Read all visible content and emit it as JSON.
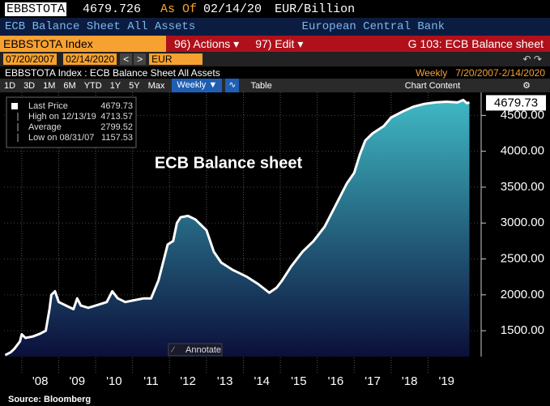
{
  "header": {
    "ticker": "EBBSTOTA",
    "price": 4679.726,
    "as_of_label": "As Of",
    "as_of": "02/14/20",
    "units": "EUR/Billion",
    "description": "ECB Balance Sheet All Assets",
    "source_org": "European Central Bank",
    "security": "EBBSTOTA Index",
    "actions": "96) Actions ▾",
    "edit": "97) Edit ▾",
    "page": "G 103: ECB Balance sheet",
    "start_date": "07/20/2007",
    "end_date": "02/14/2020",
    "currency": "EUR",
    "chart_caption": "EBBSTOTA Index : ECB Balance Sheet All Assets",
    "frequency": "Weekly",
    "range": "7/20/2007-2/14/2020"
  },
  "toolbar": {
    "periods": [
      "1D",
      "3D",
      "1M",
      "6M",
      "YTD",
      "1Y",
      "5Y",
      "Max"
    ],
    "frequency": "Weekly ▼",
    "table": "Table",
    "chart_content": "Chart Content"
  },
  "chart_data": {
    "type": "area",
    "title": "ECB Balance sheet",
    "source": "Source: Bloomberg",
    "annotate": "Annotate",
    "color": "#3fb8c4",
    "x": [
      2007.55,
      2007.7,
      2007.8,
      2007.95,
      2008.0,
      2008.1,
      2008.3,
      2008.5,
      2008.65,
      2008.75,
      2008.8,
      2008.9,
      2009.0,
      2009.2,
      2009.4,
      2009.5,
      2009.6,
      2009.8,
      2010.0,
      2010.3,
      2010.45,
      2010.6,
      2010.8,
      2011.0,
      2011.3,
      2011.5,
      2011.7,
      2011.8,
      2011.95,
      2012.1,
      2012.2,
      2012.3,
      2012.5,
      2012.7,
      2013.0,
      2013.2,
      2013.4,
      2013.7,
      2013.9,
      2014.1,
      2014.4,
      2014.7,
      2014.9,
      2015.05,
      2015.3,
      2015.6,
      2015.9,
      2016.2,
      2016.5,
      2016.8,
      2017.0,
      2017.15,
      2017.3,
      2017.5,
      2017.8,
      2018.0,
      2018.3,
      2018.6,
      2018.9,
      2019.2,
      2019.5,
      2019.8,
      2019.95,
      2020.05,
      2020.12
    ],
    "values": [
      1160,
      1200,
      1250,
      1350,
      1450,
      1400,
      1420,
      1460,
      1500,
      1800,
      2000,
      2050,
      1900,
      1850,
      1800,
      1950,
      1850,
      1820,
      1850,
      1900,
      2050,
      1950,
      1900,
      1920,
      1950,
      1950,
      2200,
      2400,
      2700,
      2750,
      3000,
      3080,
      3100,
      3050,
      2900,
      2600,
      2450,
      2350,
      2300,
      2250,
      2150,
      2030,
      2100,
      2200,
      2400,
      2600,
      2750,
      2950,
      3250,
      3550,
      3700,
      3950,
      4150,
      4250,
      4350,
      4470,
      4550,
      4620,
      4660,
      4680,
      4690,
      4680,
      4714,
      4670,
      4679.73
    ],
    "xlim": [
      2007.52,
      2020.35
    ],
    "ylim": [
      1140,
      4820
    ],
    "xticks": [
      {
        "value": 2008,
        "label": "'08"
      },
      {
        "value": 2009,
        "label": "'09"
      },
      {
        "value": 2010,
        "label": "'10"
      },
      {
        "value": 2011,
        "label": "'11"
      },
      {
        "value": 2012,
        "label": "'12"
      },
      {
        "value": 2013,
        "label": "'13"
      },
      {
        "value": 2014,
        "label": "'14"
      },
      {
        "value": 2015,
        "label": "'15"
      },
      {
        "value": 2016,
        "label": "'16"
      },
      {
        "value": 2017,
        "label": "'17"
      },
      {
        "value": 2018,
        "label": "'18"
      },
      {
        "value": 2019,
        "label": "'19"
      }
    ],
    "yticks": [
      {
        "value": 1500,
        "label": "1500.00"
      },
      {
        "value": 2000,
        "label": "2000.00"
      },
      {
        "value": 2500,
        "label": "2500.00"
      },
      {
        "value": 3000,
        "label": "3000.00"
      },
      {
        "value": 3500,
        "label": "3500.00"
      },
      {
        "value": 4000,
        "label": "4000.00"
      },
      {
        "value": 4500,
        "label": "4500.00"
      }
    ],
    "last_label": 4679.73,
    "legend": [
      {
        "label": "Last Price",
        "value": 4679.73
      },
      {
        "label": "High on 12/13/19",
        "value": 4713.57
      },
      {
        "label": "Average",
        "value": 2799.52
      },
      {
        "label": "Low on 08/31/07",
        "value": 1157.53
      }
    ]
  }
}
